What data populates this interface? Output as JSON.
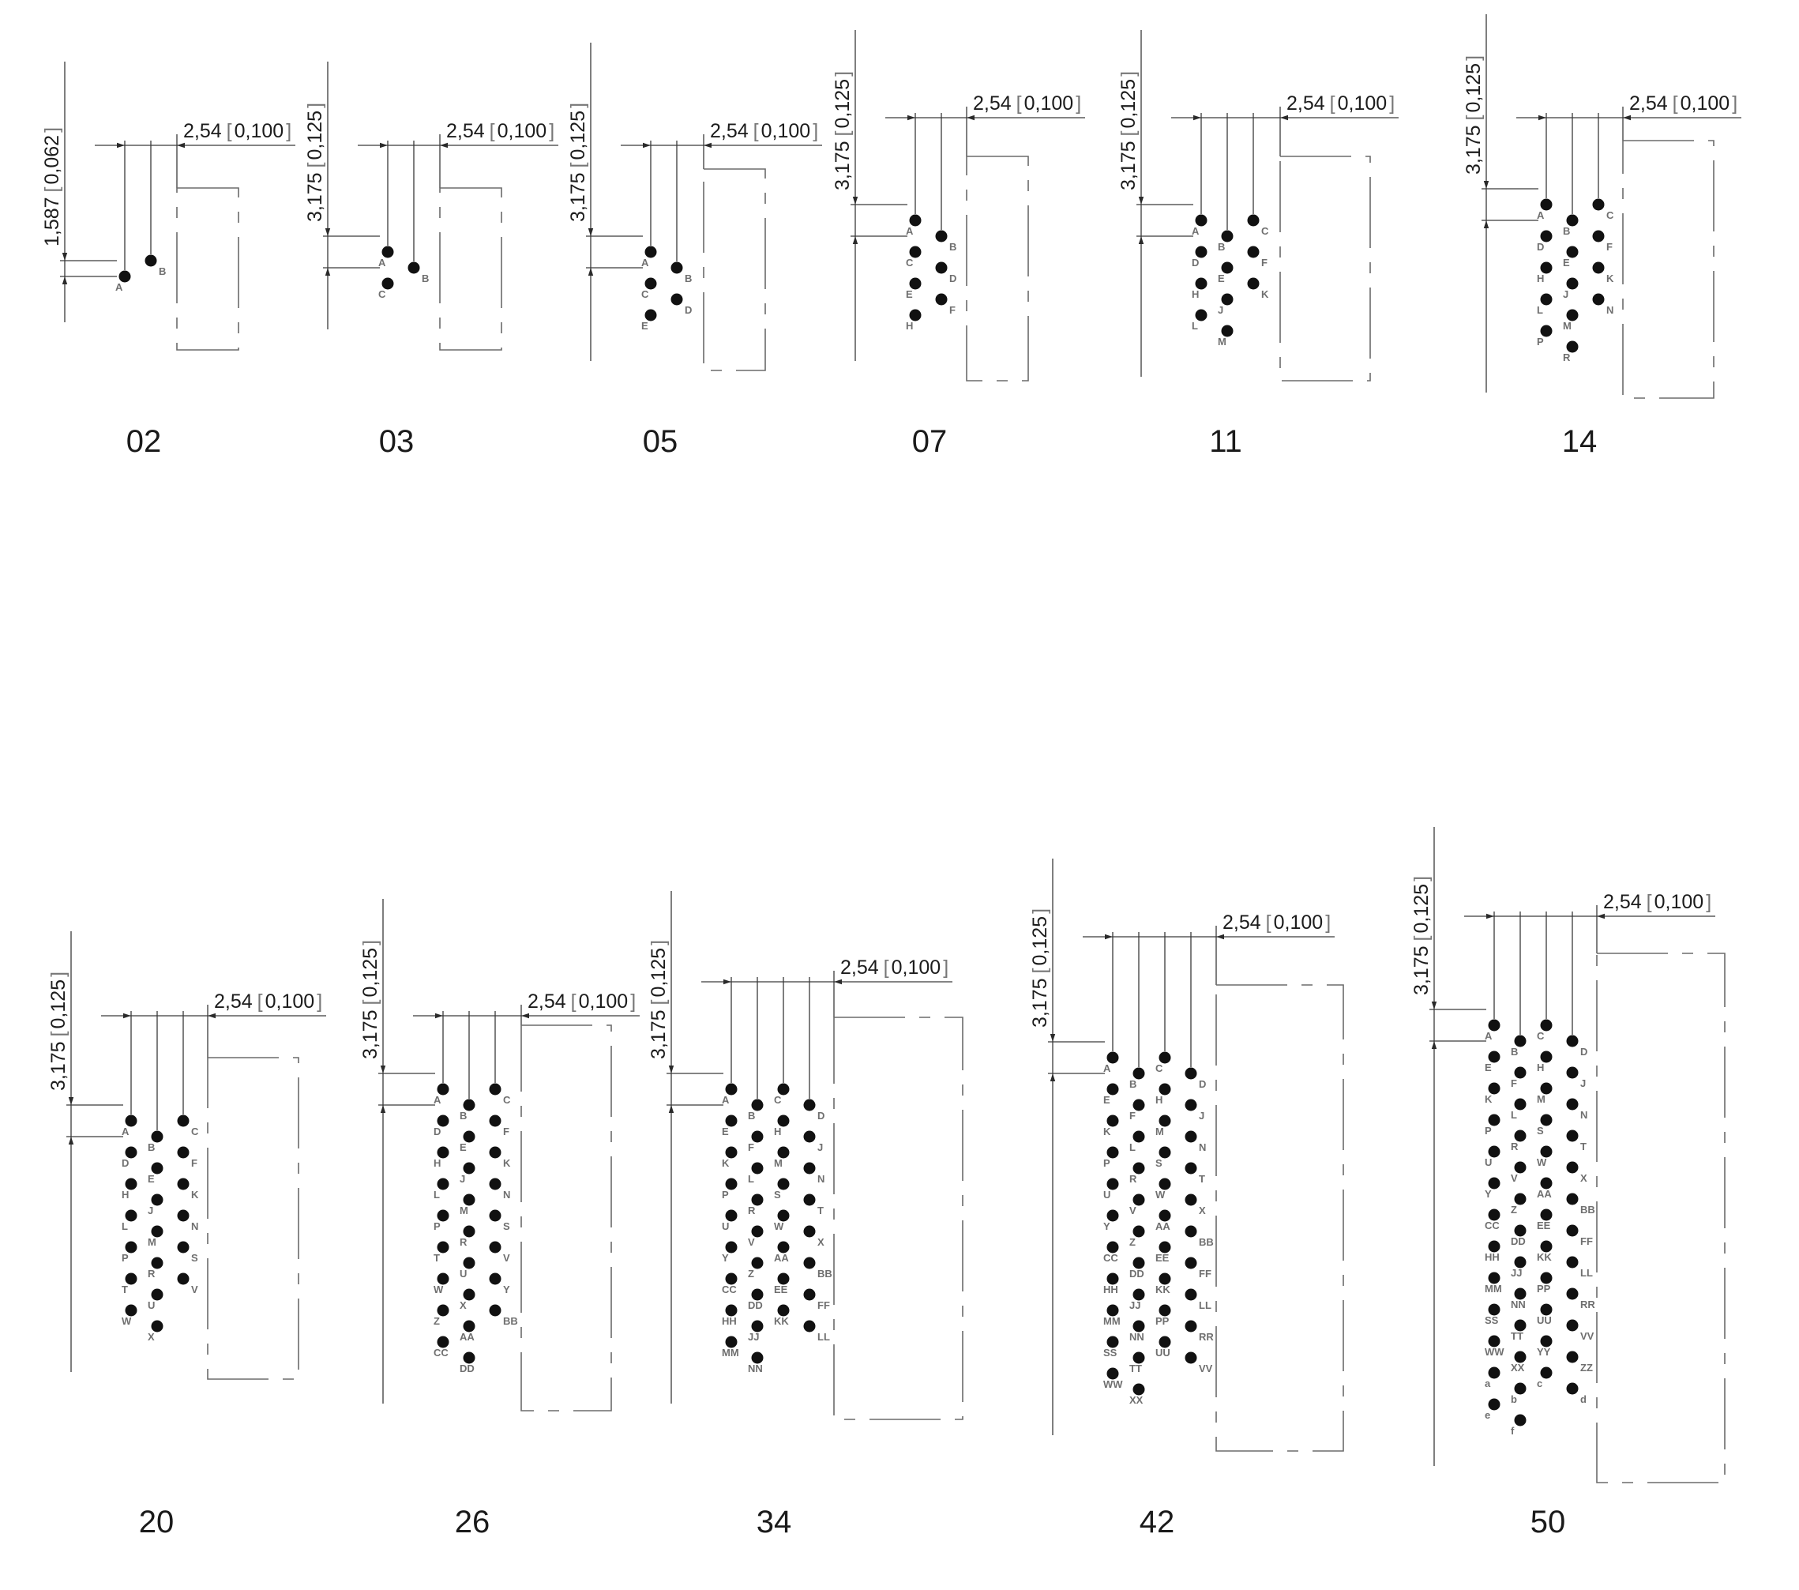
{
  "arrangements": [
    {
      "code": "02",
      "pitch_label": "2,54",
      "pitch_imperial": "0,100",
      "row_label": "1,587",
      "row_imperial": "0,062",
      "rows": [
        [
          "A",
          "B"
        ]
      ]
    },
    {
      "code": "03",
      "pitch_label": "2,54",
      "pitch_imperial": "0,100",
      "row_label": "3,175",
      "row_imperial": "0,125",
      "rows": [
        [
          "A",
          "B"
        ],
        [
          "C"
        ]
      ]
    },
    {
      "code": "05",
      "pitch_label": "2,54",
      "pitch_imperial": "0,100",
      "row_label": "3,175",
      "row_imperial": "0,125",
      "rows": [
        [
          "A",
          "B"
        ],
        [
          "C",
          "D"
        ],
        [
          "E"
        ]
      ]
    },
    {
      "code": "07",
      "pitch_label": "2,54",
      "pitch_imperial": "0,100",
      "row_label": "3,175",
      "row_imperial": "0,125",
      "rows": [
        [
          "A",
          "B"
        ],
        [
          "C",
          "D"
        ],
        [
          "E",
          "F"
        ],
        [
          "H"
        ]
      ]
    },
    {
      "code": "11",
      "pitch_label": "2,54",
      "pitch_imperial": "0,100",
      "row_label": "3,175",
      "row_imperial": "0,125",
      "rows": [
        [
          "A",
          "B",
          "C"
        ],
        [
          "D",
          "E",
          "F"
        ],
        [
          "H",
          "J",
          "K"
        ],
        [
          "L",
          "M"
        ]
      ]
    },
    {
      "code": "14",
      "pitch_label": "2,54",
      "pitch_imperial": "0,100",
      "row_label": "3,175",
      "row_imperial": "0,125",
      "rows": [
        [
          "A",
          "B",
          "C"
        ],
        [
          "D",
          "E",
          "F"
        ],
        [
          "H",
          "J",
          "K"
        ],
        [
          "L",
          "M",
          "N"
        ],
        [
          "P",
          "R"
        ]
      ]
    },
    {
      "code": "20",
      "pitch_label": "2,54",
      "pitch_imperial": "0,100",
      "row_label": "3,175",
      "row_imperial": "0,125",
      "rows": [
        [
          "A",
          "B",
          "C"
        ],
        [
          "D",
          "E",
          "F"
        ],
        [
          "H",
          "J",
          "K"
        ],
        [
          "L",
          "M",
          "N"
        ],
        [
          "P",
          "R",
          "S"
        ],
        [
          "T",
          "U",
          "V"
        ],
        [
          "W",
          "X"
        ]
      ]
    },
    {
      "code": "26",
      "pitch_label": "2,54",
      "pitch_imperial": "0,100",
      "row_label": "3,175",
      "row_imperial": "0,125",
      "rows": [
        [
          "A",
          "B",
          "C"
        ],
        [
          "D",
          "E",
          "F"
        ],
        [
          "H",
          "J",
          "K"
        ],
        [
          "L",
          "M",
          "N"
        ],
        [
          "P",
          "R",
          "S"
        ],
        [
          "T",
          "U",
          "V"
        ],
        [
          "W",
          "X",
          "Y"
        ],
        [
          "Z",
          "AA",
          "BB"
        ],
        [
          "CC",
          "DD"
        ]
      ]
    },
    {
      "code": "34",
      "pitch_label": "2,54",
      "pitch_imperial": "0,100",
      "row_label": "3,175",
      "row_imperial": "0,125",
      "rows": [
        [
          "A",
          "B",
          "C",
          "D"
        ],
        [
          "E",
          "F",
          "H",
          "J"
        ],
        [
          "K",
          "L",
          "M",
          "N"
        ],
        [
          "P",
          "R",
          "S",
          "T"
        ],
        [
          "U",
          "V",
          "W",
          "X"
        ],
        [
          "Y",
          "Z",
          "AA",
          "BB"
        ],
        [
          "CC",
          "DD",
          "EE",
          "FF"
        ],
        [
          "HH",
          "JJ",
          "KK",
          "LL"
        ],
        [
          "MM",
          "NN"
        ]
      ]
    },
    {
      "code": "42",
      "pitch_label": "2,54",
      "pitch_imperial": "0,100",
      "row_label": "3,175",
      "row_imperial": "0,125",
      "rows": [
        [
          "A",
          "B",
          "C",
          "D"
        ],
        [
          "E",
          "F",
          "H",
          "J"
        ],
        [
          "K",
          "L",
          "M",
          "N"
        ],
        [
          "P",
          "R",
          "S",
          "T"
        ],
        [
          "U",
          "V",
          "W",
          "X"
        ],
        [
          "Y",
          "Z",
          "AA",
          "BB"
        ],
        [
          "CC",
          "DD",
          "EE",
          "FF"
        ],
        [
          "HH",
          "JJ",
          "KK",
          "LL"
        ],
        [
          "MM",
          "NN",
          "PP",
          "RR"
        ],
        [
          "SS",
          "TT",
          "UU",
          "VV"
        ],
        [
          "WW",
          "XX"
        ]
      ]
    },
    {
      "code": "50",
      "pitch_label": "2,54",
      "pitch_imperial": "0,100",
      "row_label": "3,175",
      "row_imperial": "0,125",
      "rows": [
        [
          "A",
          "B",
          "C",
          "D"
        ],
        [
          "E",
          "F",
          "H",
          "J"
        ],
        [
          "K",
          "L",
          "M",
          "N"
        ],
        [
          "P",
          "R",
          "S",
          "T"
        ],
        [
          "U",
          "V",
          "W",
          "X"
        ],
        [
          "Y",
          "Z",
          "AA",
          "BB"
        ],
        [
          "CC",
          "DD",
          "EE",
          "FF"
        ],
        [
          "HH",
          "JJ",
          "KK",
          "LL"
        ],
        [
          "MM",
          "NN",
          "PP",
          "RR"
        ],
        [
          "SS",
          "TT",
          "UU",
          "VV"
        ],
        [
          "WW",
          "XX",
          "YY",
          "ZZ"
        ],
        [
          "a",
          "b",
          "c",
          "d"
        ],
        [
          "e",
          "f"
        ]
      ]
    }
  ]
}
